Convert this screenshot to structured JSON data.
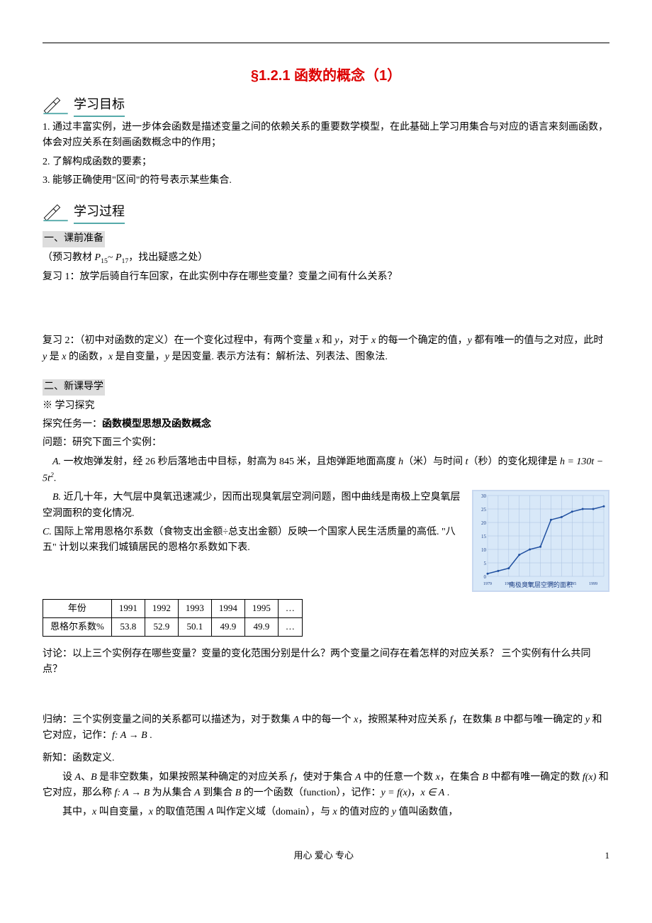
{
  "title": "§1.2.1  函数的概念（1）",
  "sections": {
    "goals": {
      "header": "学习目标",
      "items": [
        "1. 通过丰富实例，进一步体会函数是描述变量之间的依赖关系的重要数学模型，在此基础上学习用集合与对应的语言来刻画函数，体会对应关系在刻画函数概念中的作用；",
        "2. 了解构成函数的要素；",
        "3. 能够正确使用\"区间\"的符号表示某些集合."
      ]
    },
    "process": {
      "header": "学习过程",
      "prep_heading": "一、课前准备",
      "prep_note_a": "（预习教材 ",
      "prep_note_p1": "P",
      "prep_note_s1": "15",
      "prep_note_tilde": "~ ",
      "prep_note_p2": "P",
      "prep_note_s2": "17",
      "prep_note_b": "，找出疑惑之处）",
      "review1": "复习 1：放学后骑自行车回家，在此实例中存在哪些变量？变量之间有什么关系？",
      "review2_a": "复习 2：（初中对函数的定义）在一个变化过程中，有两个变量 ",
      "review2_b": " 和 ",
      "review2_c": "，对于 ",
      "review2_d": " 的每一个确定的值，",
      "review2_e": " 都有唯一的值与之对应，此时 ",
      "review2_f": " 是 ",
      "review2_g": " 的函数，",
      "review2_h": " 是自变量，",
      "review2_i": " 是因变量. 表示方法有：解析法、列表法、图象法."
    },
    "newlesson": {
      "heading": "二、新课导学",
      "explore": "※ 学习探究",
      "task1": "探究任务一：",
      "task1b": "函数模型思想及函数概念",
      "problem": "问题：研究下面三个实例：",
      "exA_a": " 一枚炮弹发射，经 26 秒后落地击中目标，射高为 845 米，且炮弹距地面高度 ",
      "exA_b": "（米）与时间 ",
      "exA_c": "（秒）的变化规律是 ",
      "exA_eq": "h = 130t − 5t",
      "exA_sup": "2",
      "exA_dot": ".",
      "exB": " 近几十年，大气层中臭氧迅速减少，因而出现臭氧层空洞问题，图中曲线是南极上空臭氧层空洞面积的变化情况.",
      "exC": " 国际上常用恩格尔系数（食物支出金额÷总支出金额）反映一个国家人民生活质量的高低.  \"八五\" 计划以来我们城镇居民的恩格尔系数如下表.",
      "chart_caption": "南极臭氧层空洞的面积",
      "table": {
        "headers": [
          "年份",
          "1991",
          "1992",
          "1993",
          "1994",
          "1995",
          "…"
        ],
        "row_label": "恩格尔系数%",
        "row": [
          "53.8",
          "52.9",
          "50.1",
          "49.9",
          "49.9",
          "…"
        ]
      },
      "discuss": "讨论：以上三个实例存在哪些变量？变量的变化范围分别是什么？两个变量之间存在着怎样的对应关系？  三个实例有什么共同点？",
      "induce_a": "归纳：三个实例变量之间的关系都可以描述为，对于数集 ",
      "induce_b": " 中的每一个 ",
      "induce_c": "，按照某种对应关系 ",
      "induce_d": "，在数集 ",
      "induce_e": " 中都与唯一确定的 ",
      "induce_f": " 和它对应，记作：",
      "induce_g": " .",
      "newdef": "新知：函数定义.",
      "def1_a": "设 ",
      "def1_b": "、",
      "def1_c": " 是非空数集，如果按照某种确定的对应关系 ",
      "def1_d": "，使对于集合 ",
      "def1_e": " 中的任意一个数 ",
      "def1_f": "，在集合 ",
      "def1_g": " 中都有唯一确定的数 ",
      "def1_h": " 和它对应，那么称 ",
      "def1_i": " 为从集合 ",
      "def1_j": " 到集合 ",
      "def1_k": " 的一个函数（function），记作：",
      "def1_l": "，",
      "def1_m": " .",
      "def2_a": "其中，",
      "def2_b": " 叫自变量，",
      "def2_c": " 的取值范围 ",
      "def2_d": " 叫作定义域（domain），与 ",
      "def2_e": " 的值对应的 ",
      "def2_f": " 值叫函数值，"
    },
    "chart": {
      "x_years": [
        1979,
        1981,
        1983,
        1985,
        1987,
        1989,
        1991,
        1993,
        1995,
        1997,
        1999,
        2001
      ],
      "y_values": [
        1,
        2,
        3,
        8,
        10,
        11,
        21,
        22,
        24,
        25,
        25,
        26
      ],
      "y_max": 30,
      "line_color": "#2050a0",
      "bg_color": "#d8e8f8",
      "grid_color": "#a8c0e0"
    }
  },
  "footer": {
    "center": "用心        爱心        专心",
    "page": "1"
  },
  "labels": {
    "A": "A.",
    "B": "B.",
    "C": "C.",
    "x": "x",
    "y": "y",
    "f": "f",
    "h": "h",
    "t": "t",
    "SetA": "A",
    "SetB": "B",
    "fAB": "f: A → B",
    "yfx": "y = f(x)",
    "xinA": "x ∈ A",
    "fx": "f(x)"
  }
}
